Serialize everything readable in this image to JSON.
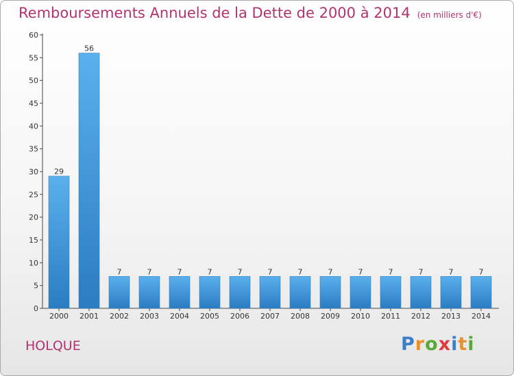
{
  "chart_data": {
    "type": "bar",
    "title": "Remboursements Annuels de la Dette de 2000 à 2014",
    "subtitle": "(en milliers d'€)",
    "categories": [
      "2000",
      "2001",
      "2002",
      "2003",
      "2004",
      "2005",
      "2006",
      "2007",
      "2008",
      "2009",
      "2010",
      "2011",
      "2012",
      "2013",
      "2014"
    ],
    "values": [
      29,
      56,
      7,
      7,
      7,
      7,
      7,
      7,
      7,
      7,
      7,
      7,
      7,
      7,
      7
    ],
    "value_labels": [
      "29",
      "56",
      "7",
      "7",
      "7",
      "7",
      "7",
      "7",
      "7",
      "7",
      "7",
      "7",
      "7",
      "7",
      "7"
    ],
    "yticks": [
      "0",
      "5",
      "10",
      "15",
      "20",
      "25",
      "30",
      "35",
      "40",
      "45",
      "50",
      "55",
      "60"
    ],
    "ylim": [
      0,
      60
    ],
    "grid": false,
    "bar_color": "#4a9ee0"
  },
  "commune": "HOLQUE",
  "logo": {
    "letters": [
      "P",
      "r",
      "o",
      "x",
      "i",
      "t",
      "i"
    ]
  }
}
